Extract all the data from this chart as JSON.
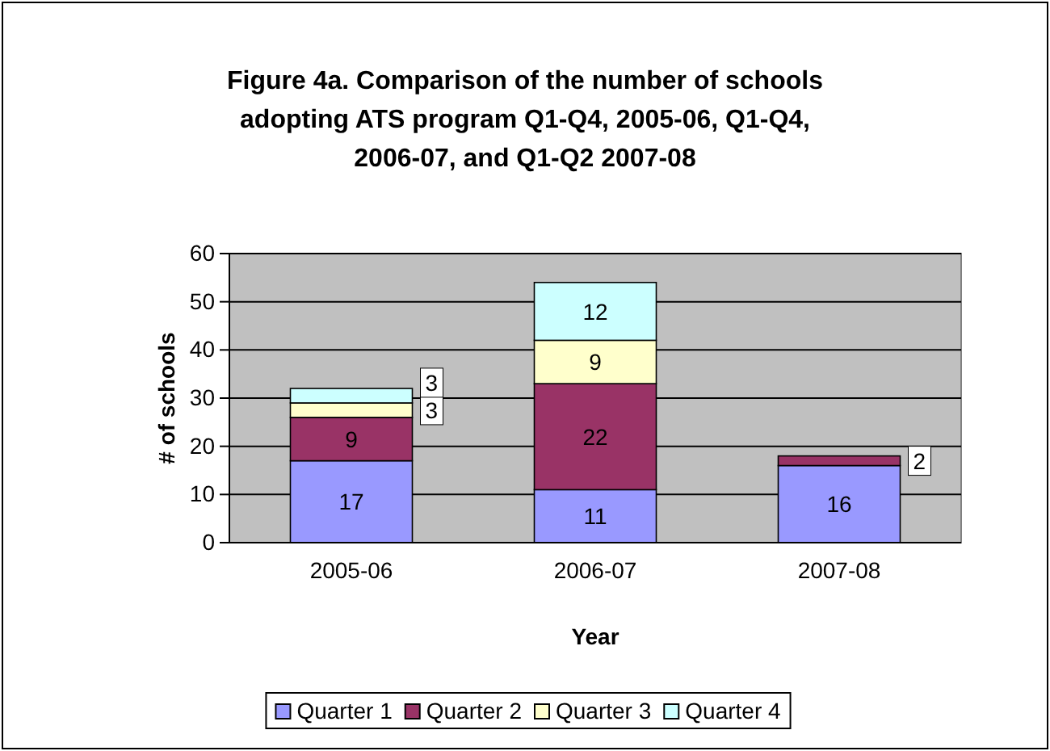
{
  "chart_data": {
    "type": "bar",
    "title": "Figure 4a. Comparison of the number of schools adopting ATS program Q1-Q4, 2005-06, Q1-Q4, 2006-07, and Q1-Q2 2007-08",
    "xlabel": "Year",
    "ylabel": "# of schools",
    "categories": [
      "2005-06",
      "2006-07",
      "2007-08"
    ],
    "stacked": true,
    "data_labels": true,
    "grid": "y",
    "legend": "bottom",
    "ylim": [
      0,
      60
    ],
    "yticks": [
      0,
      10,
      20,
      30,
      40,
      50,
      60
    ],
    "series": [
      {
        "name": "Quarter 1",
        "color": "#9999ff",
        "values": [
          17,
          11,
          16
        ]
      },
      {
        "name": "Quarter 2",
        "color": "#993366",
        "values": [
          9,
          22,
          2
        ]
      },
      {
        "name": "Quarter 3",
        "color": "#ffffcc",
        "values": [
          3,
          9,
          null
        ]
      },
      {
        "name": "Quarter 4",
        "color": "#ccffff",
        "values": [
          3,
          12,
          null
        ]
      }
    ]
  }
}
